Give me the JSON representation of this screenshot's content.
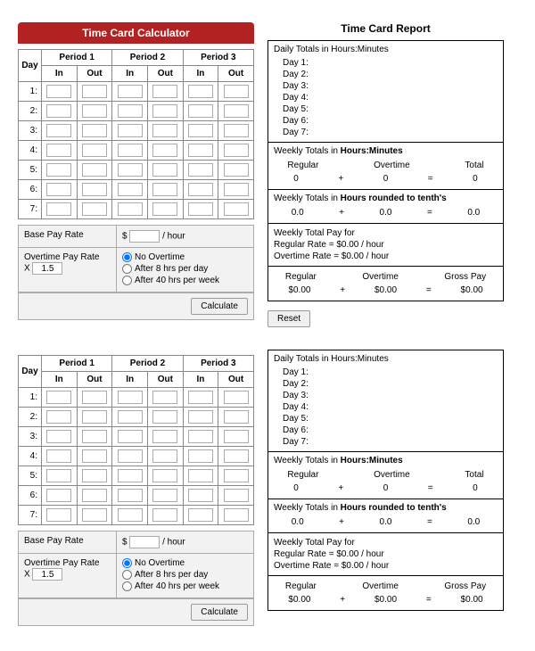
{
  "calc_header": "Time Card Calculator",
  "report_header": "Time Card Report",
  "table": {
    "day_col": "Day",
    "periods": [
      "Period 1",
      "Period 2",
      "Period 3"
    ],
    "in": "In",
    "out": "Out",
    "rows": [
      "1:",
      "2:",
      "3:",
      "4:",
      "5:",
      "6:",
      "7:"
    ]
  },
  "pay": {
    "base_label": "Base Pay Rate",
    "dollar": "$",
    "per_hour": "/ hour",
    "ot_label": "Overtime Pay Rate",
    "x": "X",
    "ot_mult": "1.5",
    "opt_none": "No Overtime",
    "opt_8": "After 8 hrs per day",
    "opt_40": "After 40 hrs per week",
    "calculate": "Calculate"
  },
  "report": {
    "daily_title": "Daily Totals in Hours:Minutes",
    "days": [
      "Day 1:",
      "Day 2:",
      "Day 3:",
      "Day 4:",
      "Day 5:",
      "Day 6:",
      "Day 7:"
    ],
    "weekly_hm": "Weekly Totals in ",
    "weekly_hm_bold": "Hours:Minutes",
    "regular": "Regular",
    "overtime": "Overtime",
    "total": "Total",
    "zero": "0",
    "plus": "+",
    "equals": "=",
    "weekly_tenth": "Weekly Totals in ",
    "weekly_tenth_bold": "Hours rounded to tenth's",
    "zero_dec": "0.0",
    "pay_for": "Weekly Total Pay for",
    "reg_rate": "Regular Rate = $0.00 / hour",
    "ot_rate": "Overtime Rate = $0.00 / hour",
    "gross": "Gross Pay",
    "money": "$0.00"
  },
  "reset": "Reset",
  "colors": {
    "header_bg": "#b22222",
    "border": "#000000"
  }
}
